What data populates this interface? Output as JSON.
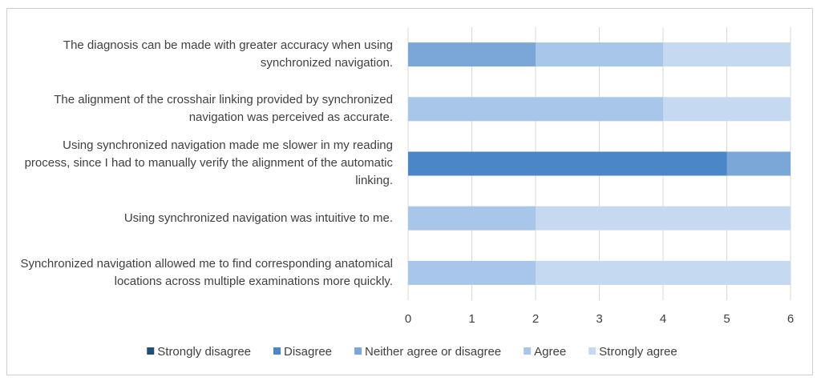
{
  "chart_data": {
    "type": "stacked-bar-horizontal",
    "categories": [
      "The diagnosis can be made with greater accuracy when using synchronized navigation.",
      "The alignment of the crosshair linking provided by synchronized navigation was perceived as accurate.",
      "Using synchronized navigation made me slower in my reading process, since I had to manually verify the alignment of the automatic linking.",
      "Using synchronized navigation was intuitive to me.",
      "Synchronized navigation allowed me to find corresponding anatomical locations across multiple examinations more quickly."
    ],
    "series": [
      {
        "name": "Strongly disagree",
        "color": "#1f4e79",
        "values": [
          0,
          0,
          0,
          0,
          0
        ]
      },
      {
        "name": "Disagree",
        "color": "#4a86c8",
        "values": [
          0,
          0,
          5,
          0,
          0
        ]
      },
      {
        "name": "Neither agree or disagree",
        "color": "#7aa6d8",
        "values": [
          2,
          0,
          1,
          0,
          0
        ]
      },
      {
        "name": "Agree",
        "color": "#a8c5ea",
        "values": [
          2,
          4,
          0,
          2,
          2
        ]
      },
      {
        "name": "Strongly agree",
        "color": "#c5d9f1",
        "values": [
          2,
          2,
          0,
          4,
          4
        ]
      }
    ],
    "xlim": [
      0,
      6
    ],
    "xticks": [
      0,
      1,
      2,
      3,
      4,
      5,
      6
    ],
    "grid": true,
    "legend": "bottom"
  }
}
